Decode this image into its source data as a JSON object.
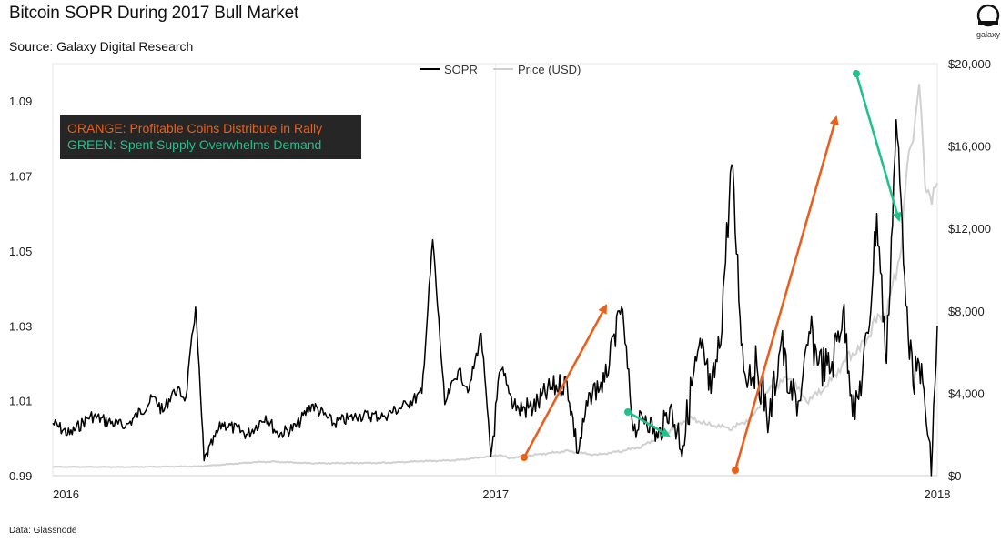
{
  "title": "Bitcoin SOPR During 2017 Bull Market",
  "subtitle": "Source: Galaxy Digital Research",
  "footer": "Data: Glassnode",
  "logo": {
    "text": "galaxy",
    "icon": "galaxy-logo-icon"
  },
  "colors": {
    "sopr": "#000000",
    "price": "#d0d0d0",
    "orange": "#e8601c",
    "green": "#1fc28a",
    "box": "#262626"
  },
  "chart_data": {
    "type": "line",
    "x_ticks": [
      "2016",
      "2017",
      "2018"
    ],
    "xlim": [
      "2016-01-01",
      "2018-01-01"
    ],
    "left_axis": {
      "ylim": [
        0.99,
        1.1
      ],
      "ticks": [
        "0.99",
        "1.01",
        "1.03",
        "1.05",
        "1.07",
        "1.09"
      ]
    },
    "right_axis": {
      "ylim": [
        0,
        20000
      ],
      "ticks": [
        "$0",
        "$4,000",
        "$8,000",
        "$12,000",
        "$16,000",
        "$20,000"
      ]
    },
    "grid": false,
    "legend": {
      "position": "top-center",
      "entries": [
        "SOPR",
        "Price (USD)"
      ]
    },
    "annotations": {
      "orange_label": "ORANGE: Profitable Coins Distribute in Rally",
      "green_label": "GREEN: Spent Supply Overwhelms Demand"
    },
    "series": [
      {
        "name": "SOPR",
        "axis": "left",
        "x": [
          "2016-01-01",
          "2016-01-15",
          "2016-02-01",
          "2016-03-01",
          "2016-03-25",
          "2016-04-01",
          "2016-04-10",
          "2016-04-20",
          "2016-04-28",
          "2016-05-05",
          "2016-05-20",
          "2016-06-10",
          "2016-06-25",
          "2016-07-05",
          "2016-07-20",
          "2016-08-02",
          "2016-08-20",
          "2016-09-10",
          "2016-10-01",
          "2016-10-20",
          "2016-11-01",
          "2016-11-10",
          "2016-11-20",
          "2016-12-01",
          "2016-12-10",
          "2016-12-20",
          "2016-12-28",
          "2017-01-05",
          "2017-01-12",
          "2017-01-20",
          "2017-02-01",
          "2017-02-15",
          "2017-03-01",
          "2017-03-10",
          "2017-03-20",
          "2017-04-01",
          "2017-04-15",
          "2017-04-25",
          "2017-05-05",
          "2017-05-15",
          "2017-05-25",
          "2017-06-05",
          "2017-06-12",
          "2017-06-20",
          "2017-06-28",
          "2017-07-05",
          "2017-07-15",
          "2017-07-25",
          "2017-08-05",
          "2017-08-15",
          "2017-08-25",
          "2017-09-01",
          "2017-09-10",
          "2017-09-18",
          "2017-09-25",
          "2017-10-05",
          "2017-10-15",
          "2017-10-25",
          "2017-11-05",
          "2017-11-12",
          "2017-11-20",
          "2017-11-28",
          "2017-12-07",
          "2017-12-12",
          "2017-12-17",
          "2017-12-22",
          "2017-12-27",
          "2018-01-01"
        ],
        "values": [
          1.004,
          1.001,
          1.006,
          1.003,
          1.011,
          1.007,
          1.013,
          1.011,
          1.035,
          0.994,
          1.004,
          1.001,
          1.006,
          1.001,
          1.003,
          1.009,
          1.004,
          1.006,
          1.006,
          1.009,
          1.012,
          1.053,
          1.009,
          1.018,
          1.013,
          1.028,
          0.995,
          1.018,
          1.012,
          1.008,
          1.008,
          1.013,
          1.015,
          0.996,
          1.012,
          1.015,
          1.035,
          1.002,
          1.006,
          1.0,
          1.008,
          0.998,
          1.014,
          1.024,
          1.012,
          1.024,
          1.073,
          1.018,
          1.019,
          1.005,
          1.026,
          1.012,
          1.01,
          1.028,
          1.02,
          1.018,
          1.034,
          1.005,
          1.028,
          1.06,
          1.02,
          1.085,
          1.035,
          1.014,
          1.02,
          1.008,
          0.99,
          1.03
        ]
      },
      {
        "name": "Price (USD)",
        "axis": "right",
        "x": [
          "2016-01-01",
          "2016-03-01",
          "2016-05-01",
          "2016-06-15",
          "2016-07-01",
          "2016-08-01",
          "2016-09-01",
          "2016-10-01",
          "2016-11-01",
          "2016-12-01",
          "2016-12-20",
          "2017-01-05",
          "2017-01-12",
          "2017-02-01",
          "2017-03-01",
          "2017-03-25",
          "2017-04-15",
          "2017-05-01",
          "2017-05-20",
          "2017-06-10",
          "2017-06-25",
          "2017-07-15",
          "2017-08-01",
          "2017-08-15",
          "2017-09-01",
          "2017-09-15",
          "2017-10-01",
          "2017-10-20",
          "2017-11-01",
          "2017-11-10",
          "2017-11-20",
          "2017-12-01",
          "2017-12-07",
          "2017-12-12",
          "2017-12-17",
          "2017-12-22",
          "2017-12-26",
          "2018-01-01"
        ],
        "values": [
          430,
          420,
          450,
          650,
          680,
          600,
          610,
          620,
          700,
          750,
          890,
          1000,
          850,
          1000,
          1200,
          1000,
          1200,
          1400,
          2000,
          2800,
          2500,
          2300,
          2800,
          4200,
          4800,
          3600,
          4300,
          5800,
          6300,
          7400,
          8000,
          10500,
          15000,
          16500,
          19200,
          14000,
          13500,
          14200
        ]
      }
    ]
  }
}
